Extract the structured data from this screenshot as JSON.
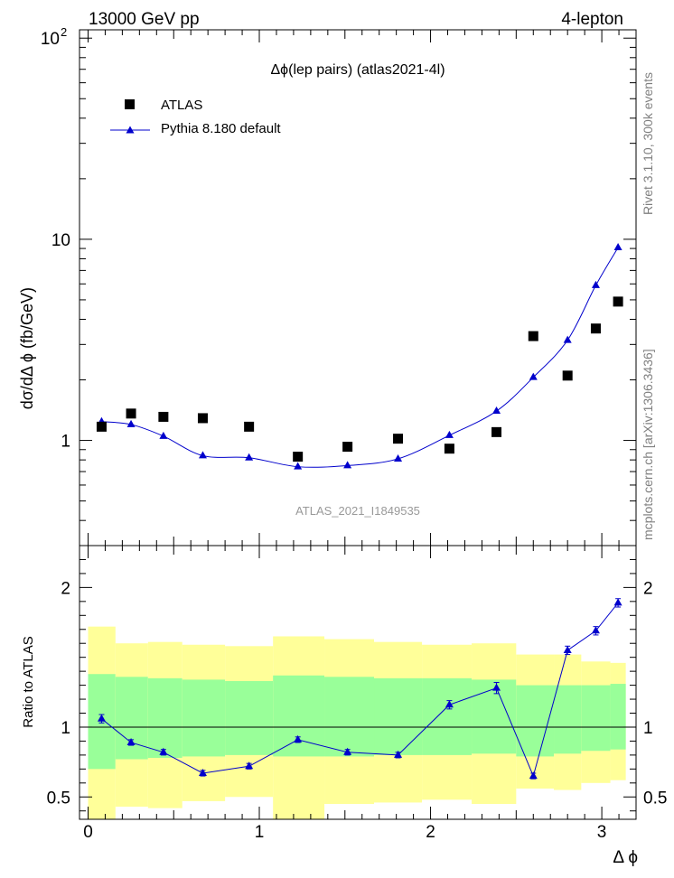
{
  "header": {
    "left": "13000 GeV pp",
    "right": "4-lepton"
  },
  "side_labels": {
    "rivet": "Rivet 3.1.10,  300k events",
    "mcplots": "mcplots.cern.ch [arXiv:1306.3436]"
  },
  "colors": {
    "data": "#000000",
    "mc": "#0000cc",
    "band_inner": "#99ff99",
    "band_outer": "#ffff99"
  },
  "chart_data": [
    {
      "type": "scatter",
      "panel": "main",
      "title": "Δϕ(lep pairs) (atlas2021-4l)",
      "watermark": "ATLAS_2021_I1849535",
      "ylabel": "dσ/dΔ ϕ (fb/GeV)",
      "yscale": "log",
      "ylim": [
        0.3,
        110
      ],
      "xlim": [
        -0.05,
        3.2
      ],
      "legend_position": "top-left",
      "y_tick_labels": [
        "1",
        "10",
        "10^2"
      ],
      "series": [
        {
          "name": "ATLAS",
          "marker": "square",
          "x": [
            0.079,
            0.251,
            0.44,
            0.67,
            0.94,
            1.225,
            1.515,
            1.81,
            2.11,
            2.385,
            2.6,
            2.8,
            2.965,
            3.095
          ],
          "y": [
            1.17,
            1.36,
            1.31,
            1.29,
            1.17,
            0.83,
            0.93,
            1.02,
            0.91,
            1.1,
            3.3,
            2.1,
            3.6,
            4.9
          ]
        },
        {
          "name": "Pythia 8.180 default",
          "marker": "triangle",
          "x": [
            0.079,
            0.251,
            0.44,
            0.67,
            0.94,
            1.225,
            1.515,
            1.81,
            2.11,
            2.385,
            2.6,
            2.8,
            2.965,
            3.095
          ],
          "y": [
            1.24,
            1.2,
            1.05,
            0.84,
            0.82,
            0.74,
            0.75,
            0.81,
            1.06,
            1.4,
            2.06,
            3.15,
            5.9,
            9.1
          ]
        }
      ]
    },
    {
      "type": "line",
      "panel": "ratio",
      "ylabel": "Ratio to ATLAS",
      "xlabel": "Δ ϕ",
      "ylim": [
        0.34,
        2.3
      ],
      "xlim": [
        -0.05,
        3.2
      ],
      "x_tick_labels": [
        "0",
        "1",
        "2",
        "3"
      ],
      "y_tick_labels": [
        "0.5",
        "1",
        "2"
      ],
      "reference_line": 1,
      "band_edges": [
        0,
        0.16,
        0.35,
        0.55,
        0.8,
        1.08,
        1.38,
        1.67,
        1.95,
        2.24,
        2.5,
        2.72,
        2.88,
        3.05,
        3.14
      ],
      "band_inner_low": [
        0.7,
        0.77,
        0.78,
        0.79,
        0.8,
        0.79,
        0.79,
        0.8,
        0.8,
        0.81,
        0.79,
        0.81,
        0.83,
        0.84
      ],
      "band_inner_high": [
        1.38,
        1.36,
        1.35,
        1.34,
        1.33,
        1.37,
        1.36,
        1.35,
        1.35,
        1.34,
        1.3,
        1.3,
        1.3,
        1.31
      ],
      "band_outer_low": [
        0.34,
        0.43,
        0.42,
        0.47,
        0.5,
        0.34,
        0.45,
        0.46,
        0.48,
        0.45,
        0.56,
        0.55,
        0.6,
        0.62
      ],
      "band_outer_high": [
        1.72,
        1.6,
        1.61,
        1.59,
        1.58,
        1.65,
        1.63,
        1.61,
        1.59,
        1.6,
        1.52,
        1.52,
        1.47,
        1.46
      ],
      "series": [
        {
          "name": "Pythia 8.180 default",
          "x": [
            0.079,
            0.251,
            0.44,
            0.67,
            0.94,
            1.225,
            1.515,
            1.81,
            2.11,
            2.385,
            2.6,
            2.8,
            2.965,
            3.095
          ],
          "y": [
            1.06,
            0.89,
            0.82,
            0.67,
            0.72,
            0.91,
            0.82,
            0.8,
            1.16,
            1.28,
            0.65,
            1.55,
            1.69,
            1.89
          ],
          "yerr": [
            0.03,
            0.02,
            0.02,
            0.02,
            0.02,
            0.02,
            0.02,
            0.02,
            0.03,
            0.04,
            0.02,
            0.03,
            0.03,
            0.03
          ]
        }
      ]
    }
  ]
}
